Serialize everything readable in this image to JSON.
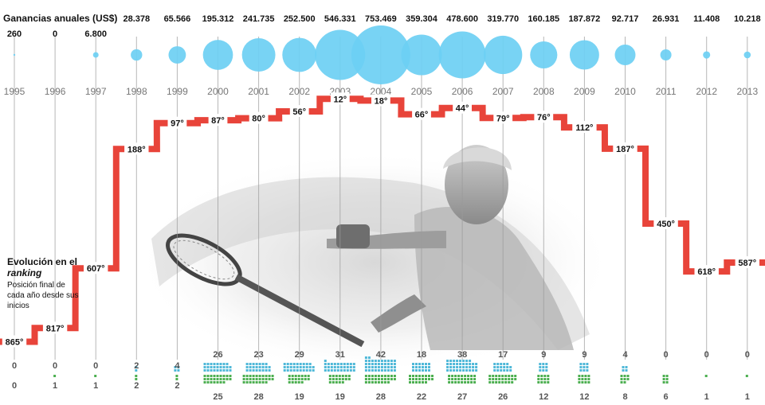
{
  "chart_data": {
    "type": "composite",
    "title": "",
    "earnings_label": "Ganancias anuales (US$)",
    "years": [
      "1995",
      "1996",
      "1997",
      "1998",
      "1999",
      "2000",
      "2001",
      "2002",
      "2003",
      "2004",
      "2005",
      "2006",
      "2007",
      "2008",
      "2009",
      "2010",
      "2011",
      "2012",
      "2013"
    ],
    "earnings_text": [
      "260",
      "0",
      "6.800",
      "28.378",
      "65.566",
      "195.312",
      "241.735",
      "252.500",
      "546.331",
      "753.469",
      "359.304",
      "478.600",
      "319.770",
      "160.185",
      "187.872",
      "92.717",
      "26.931",
      "11.408",
      "10.218"
    ],
    "earnings": [
      260,
      0,
      6800,
      28378,
      65566,
      195312,
      241735,
      252500,
      546331,
      753469,
      359304,
      478600,
      319770,
      160185,
      187872,
      92717,
      26931,
      11408,
      10218
    ],
    "ranking_title": "Evolución en el",
    "ranking_title_em": "ranking",
    "ranking_subtitle": "Posición final de cada año desde sus inicios",
    "ranking_text": [
      "865°",
      "817°",
      "607°",
      "188°",
      "97°",
      "87°",
      "80°",
      "56°",
      "12°",
      "18°",
      "66°",
      "44°",
      "79°",
      "76°",
      "112°",
      "187°",
      "450°",
      "618°",
      "587°"
    ],
    "ranking": [
      865,
      817,
      607,
      188,
      97,
      87,
      80,
      56,
      12,
      18,
      66,
      44,
      79,
      76,
      112,
      187,
      450,
      618,
      587
    ],
    "ranking_range": [
      0,
      900
    ],
    "top_counts": [
      0,
      0,
      0,
      2,
      4,
      26,
      23,
      29,
      31,
      42,
      18,
      38,
      17,
      9,
      9,
      4,
      0,
      0,
      0
    ],
    "bottom_counts": [
      0,
      1,
      1,
      2,
      2,
      25,
      28,
      19,
      19,
      28,
      22,
      27,
      26,
      12,
      12,
      8,
      6,
      1,
      1
    ],
    "colors": {
      "bubble": "#6dcff3",
      "ranking_line": "#e8443a",
      "top_squares": "#4fb8d8",
      "bottom_squares": "#4caf50",
      "gridline": "#9a9a9a"
    }
  }
}
